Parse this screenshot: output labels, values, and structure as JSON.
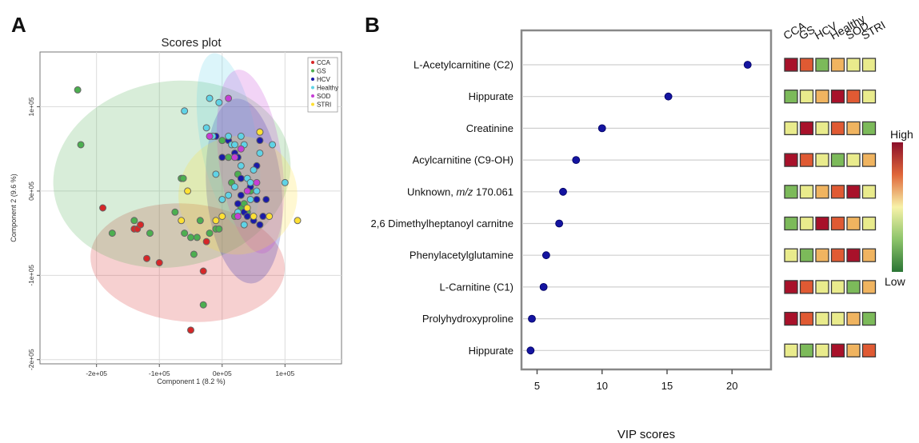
{
  "panels": {
    "a": "A",
    "b": "B"
  },
  "chart_data": [
    {
      "type": "scatter",
      "title": "Scores plot",
      "xlabel": "Component 1 (8.2 %)",
      "ylabel": "Component 2 (9.6 %)",
      "xlim": [
        -290000,
        190000
      ],
      "ylim": [
        -205000,
        165000
      ],
      "xticks": [
        -200000,
        -100000,
        0,
        100000
      ],
      "xtick_labels": [
        "-2e+05",
        "-1e+05",
        "0e+05",
        "1e+05"
      ],
      "yticks": [
        -200000,
        -100000,
        0,
        100000
      ],
      "ytick_labels": [
        "-2e+05",
        "-1e+05",
        "0e+05",
        "1e+05"
      ],
      "grid": true,
      "legend": "top-right",
      "series": [
        {
          "name": "CCA",
          "color": "#d62728",
          "ellipse": {
            "cx": -55000,
            "cy": -85000,
            "rx": 155000,
            "ry": 70000,
            "angle": 5
          },
          "points": [
            [
              -190000,
              -20000
            ],
            [
              -140000,
              -45000
            ],
            [
              -135000,
              -45000
            ],
            [
              -130000,
              -40000
            ],
            [
              -120000,
              -80000
            ],
            [
              -100000,
              -85000
            ],
            [
              -50000,
              -165000
            ],
            [
              -30000,
              -95000
            ],
            [
              -25000,
              -60000
            ]
          ]
        },
        {
          "name": "GS",
          "color": "#4caf50",
          "ellipse": {
            "cx": -80000,
            "cy": 20000,
            "rx": 190000,
            "ry": 110000,
            "angle": -10
          },
          "points": [
            [
              -230000,
              120000
            ],
            [
              -225000,
              55000
            ],
            [
              -175000,
              -50000
            ],
            [
              -140000,
              -35000
            ],
            [
              -115000,
              -50000
            ],
            [
              -75000,
              -25000
            ],
            [
              -65000,
              15000
            ],
            [
              -62000,
              15000
            ],
            [
              -60000,
              -50000
            ],
            [
              -50000,
              -55000
            ],
            [
              -45000,
              -75000
            ],
            [
              -40000,
              -55000
            ],
            [
              -35000,
              -35000
            ],
            [
              -30000,
              -135000
            ],
            [
              -20000,
              -50000
            ],
            [
              -10000,
              -45000
            ],
            [
              -5000,
              -45000
            ],
            [
              0,
              60000
            ],
            [
              10000,
              40000
            ],
            [
              15000,
              10000
            ],
            [
              20000,
              -30000
            ],
            [
              25000,
              20000
            ],
            [
              30000,
              -20000
            ],
            [
              35000,
              -15000
            ],
            [
              40000,
              -25000
            ],
            [
              45000,
              0
            ]
          ]
        },
        {
          "name": "HCV",
          "color": "#1a1aa8",
          "ellipse": {
            "cx": 35000,
            "cy": 0,
            "rx": 60000,
            "ry": 110000,
            "angle": -5
          },
          "points": [
            [
              -10000,
              65000
            ],
            [
              0,
              40000
            ],
            [
              10000,
              60000
            ],
            [
              20000,
              45000
            ],
            [
              25000,
              40000
            ],
            [
              25000,
              -15000
            ],
            [
              30000,
              -5000
            ],
            [
              30000,
              15000
            ],
            [
              35000,
              -25000
            ],
            [
              40000,
              -30000
            ],
            [
              45000,
              5000
            ],
            [
              50000,
              -35000
            ],
            [
              55000,
              -10000
            ],
            [
              55000,
              30000
            ],
            [
              60000,
              60000
            ],
            [
              60000,
              -40000
            ],
            [
              65000,
              -30000
            ],
            [
              70000,
              -10000
            ]
          ]
        },
        {
          "name": "Healthy",
          "color": "#5fd3e6",
          "ellipse": {
            "cx": 10000,
            "cy": 60000,
            "rx": 45000,
            "ry": 105000,
            "angle": -10
          },
          "points": [
            [
              -20000,
              110000
            ],
            [
              -60000,
              95000
            ],
            [
              -25000,
              75000
            ],
            [
              -15000,
              65000
            ],
            [
              -10000,
              20000
            ],
            [
              -5000,
              105000
            ],
            [
              0,
              -10000
            ],
            [
              10000,
              -5000
            ],
            [
              10000,
              65000
            ],
            [
              15000,
              55000
            ],
            [
              20000,
              5000
            ],
            [
              20000,
              55000
            ],
            [
              25000,
              -25000
            ],
            [
              30000,
              30000
            ],
            [
              30000,
              65000
            ],
            [
              35000,
              -40000
            ],
            [
              35000,
              55000
            ],
            [
              40000,
              15000
            ],
            [
              45000,
              10000
            ],
            [
              45000,
              -10000
            ],
            [
              50000,
              25000
            ],
            [
              55000,
              0
            ],
            [
              60000,
              45000
            ],
            [
              80000,
              55000
            ],
            [
              100000,
              10000
            ]
          ]
        },
        {
          "name": "SOD",
          "color": "#c63dd6",
          "ellipse": {
            "cx": 45000,
            "cy": 35000,
            "rx": 50000,
            "ry": 110000,
            "angle": -8
          },
          "points": [
            [
              -20000,
              65000
            ],
            [
              10000,
              110000
            ],
            [
              20000,
              40000
            ],
            [
              25000,
              -30000
            ],
            [
              30000,
              50000
            ],
            [
              40000,
              0
            ],
            [
              55000,
              10000
            ],
            [
              60000,
              70000
            ]
          ]
        },
        {
          "name": "STRI",
          "color": "#ffe033",
          "ellipse": {
            "cx": 25000,
            "cy": -5000,
            "rx": 95000,
            "ry": 70000,
            "angle": -40
          },
          "points": [
            [
              -65000,
              -35000
            ],
            [
              -55000,
              0
            ],
            [
              -10000,
              -35000
            ],
            [
              0,
              -30000
            ],
            [
              40000,
              -20000
            ],
            [
              50000,
              -30000
            ],
            [
              60000,
              70000
            ],
            [
              75000,
              -30000
            ],
            [
              120000,
              -35000
            ]
          ]
        }
      ]
    },
    {
      "type": "scatter",
      "title": "",
      "xlabel": "VIP scores",
      "ylabel": "",
      "xlim": [
        3.8,
        23.0
      ],
      "xticks": [
        5,
        10,
        15,
        20
      ],
      "point_color": "#1414a0",
      "categories": [
        "L-Acetylcarnitine (C2)",
        "Hippurate",
        "Creatinine",
        "Acylcarnitine (C9-OH)",
        "Unknown, m/z 170.061",
        "2,6 Dimethylheptanoyl carnitne",
        "Phenylacetylglutamine",
        "L-Carnitine (C1)",
        "Prolyhydroxyproline",
        "Hippurate"
      ],
      "values": [
        21.2,
        15.1,
        10.0,
        8.0,
        7.0,
        6.7,
        5.7,
        5.5,
        4.6,
        4.5
      ],
      "heatmap": {
        "groups": [
          "CCA",
          "GS",
          "HCV",
          "Healthy",
          "SOD",
          "STRI"
        ],
        "scale_high": "High",
        "scale_low": "Low",
        "levels": [
          [
            5,
            4,
            1,
            3,
            2,
            2
          ],
          [
            1,
            2,
            3,
            5,
            4,
            2
          ],
          [
            2,
            5,
            2,
            4,
            3,
            1
          ],
          [
            5,
            4,
            2,
            1,
            2,
            3
          ],
          [
            1,
            2,
            3,
            4,
            5,
            2
          ],
          [
            1,
            2,
            5,
            4,
            3,
            2
          ],
          [
            2,
            1,
            3,
            4,
            5,
            3
          ],
          [
            5,
            4,
            2,
            2,
            1,
            3
          ],
          [
            5,
            4,
            2,
            2,
            3,
            1
          ],
          [
            2,
            1,
            2,
            5,
            3,
            4
          ]
        ],
        "palette": [
          "#2f7d3a",
          "#7cba5a",
          "#e9eb8c",
          "#f0b460",
          "#e05a33",
          "#a8112a"
        ]
      }
    }
  ]
}
